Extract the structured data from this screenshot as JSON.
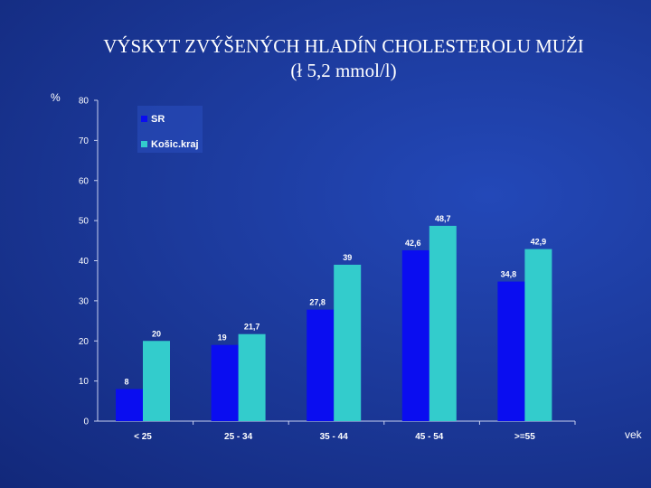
{
  "slide": {
    "title_line1": "VÝSKYT ZVÝŠENÝCH HLADÍN CHOLESTEROLU MUŽI",
    "title_line2": "(ł 5,2 mmol/l)"
  },
  "chart_data": {
    "type": "bar",
    "title": "VÝSKYT ZVÝŠENÝCH HLADÍN CHOLESTEROLU MUŽI (ł 5,2 mmol/l)",
    "ylabel": "%",
    "xlabel": "vek",
    "ylim": [
      0,
      80
    ],
    "yticks": [
      0,
      10,
      20,
      30,
      40,
      50,
      60,
      70,
      80
    ],
    "categories": [
      "< 25",
      "25 - 34",
      "35 - 44",
      "45 - 54",
      ">=55"
    ],
    "series": [
      {
        "name": "SR",
        "color": "#0a0df0",
        "values": [
          8,
          19,
          27.8,
          42.6,
          34.8
        ],
        "labels": [
          "8",
          "19",
          "27,8",
          "42,6",
          "34,8"
        ]
      },
      {
        "name": "Košic.kraj",
        "color": "#33cccc",
        "values": [
          20,
          21.7,
          39,
          48.7,
          42.9
        ],
        "labels": [
          "20",
          "21,7",
          "39",
          "48,7",
          "42,9"
        ]
      }
    ],
    "legend_position": "top-left",
    "grid": false
  }
}
